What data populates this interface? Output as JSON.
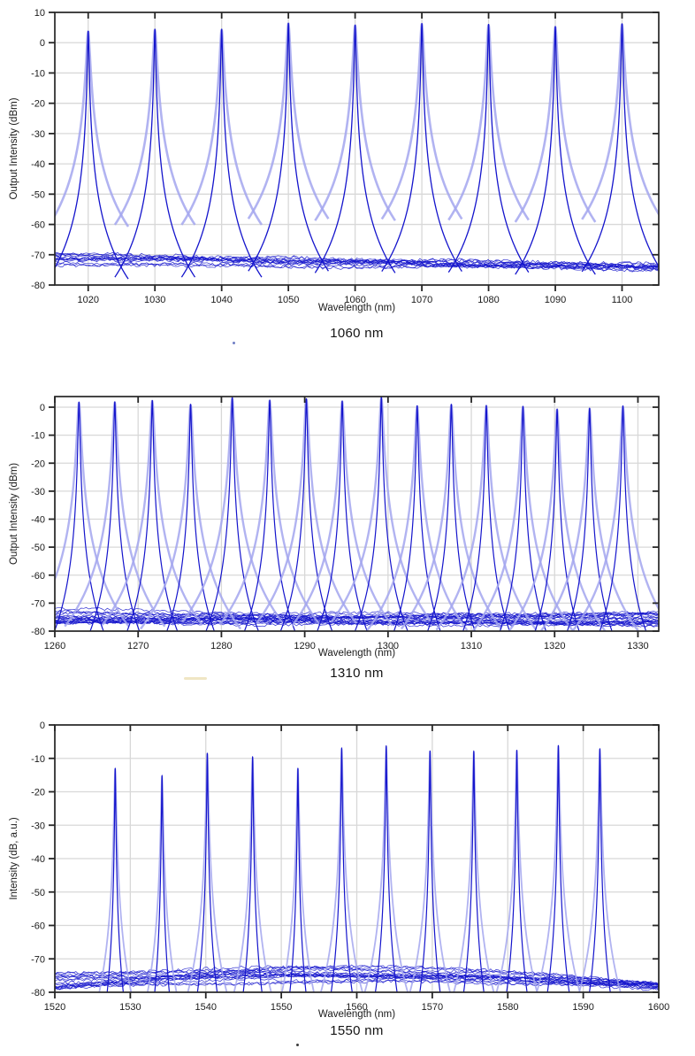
{
  "page": {
    "background": "#ffffff"
  },
  "colors": {
    "trace": "#1414cc",
    "halo": "#a3a6ef",
    "grid": "#d8d8d8",
    "axis": "#262626",
    "tick_text": "#1a1a1a",
    "caption_text": "#141414"
  },
  "chart_data": [
    {
      "type": "line",
      "caption": "1060 nm",
      "xlabel": "Wavelength (nm)",
      "ylabel": "Output Intensity (dBm)",
      "xlim": [
        1015,
        1105.5
      ],
      "ylim": [
        -80,
        10
      ],
      "xticks": [
        1020,
        1030,
        1040,
        1050,
        1060,
        1070,
        1080,
        1090,
        1100
      ],
      "yticks": [
        10,
        0,
        -10,
        -20,
        -30,
        -40,
        -50,
        -60,
        -70,
        -80
      ],
      "grid": true,
      "legend": null,
      "series_note": "Superimposed OSA sweeps of a tunable laser; one lasing peak per sweep over a ~-70 dBm ASE noise floor",
      "peaks": [
        {
          "wavelength_nm": 1020.0,
          "peak_db": 3.8
        },
        {
          "wavelength_nm": 1030.0,
          "peak_db": 4.4
        },
        {
          "wavelength_nm": 1040.0,
          "peak_db": 4.4
        },
        {
          "wavelength_nm": 1050.0,
          "peak_db": 6.4
        },
        {
          "wavelength_nm": 1060.0,
          "peak_db": 5.8
        },
        {
          "wavelength_nm": 1070.0,
          "peak_db": 6.3
        },
        {
          "wavelength_nm": 1080.0,
          "peak_db": 6.0
        },
        {
          "wavelength_nm": 1090.0,
          "peak_db": 5.3
        },
        {
          "wavelength_nm": 1100.0,
          "peak_db": 6.2
        }
      ],
      "noise_floor": {
        "start_range": [
          -73.5,
          -69.5
        ],
        "end_range": [
          -75.0,
          -73.2
        ],
        "mid_range": null,
        "jitter_db": 1.1,
        "extra_traces": 4
      },
      "peak_shape": {
        "gamma_nm": 0.1,
        "rolloff_db": 23,
        "halo_gamma_scale": 2.4,
        "halo_width": 2.6,
        "core_width": 1.3
      },
      "seed": 11
    },
    {
      "type": "line",
      "caption": "1310 nm",
      "xlabel": "Wavelength (nm)",
      "ylabel": "Output Intensity (dBm)",
      "xlim": [
        1260,
        1332.5
      ],
      "ylim": [
        -80,
        3.8
      ],
      "xticks": [
        1260,
        1270,
        1280,
        1290,
        1300,
        1310,
        1320,
        1330
      ],
      "yticks": [
        0,
        -10,
        -20,
        -30,
        -40,
        -50,
        -60,
        -70,
        -80
      ],
      "grid": true,
      "legend": null,
      "series_note": "Superimposed OSA sweeps; 16 lasing peaks spaced ~4.4 nm over a ~-74 dBm noise floor",
      "peaks": [
        {
          "wavelength_nm": 1262.9,
          "peak_db": 1.8
        },
        {
          "wavelength_nm": 1267.2,
          "peak_db": 1.9
        },
        {
          "wavelength_nm": 1271.7,
          "peak_db": 2.4
        },
        {
          "wavelength_nm": 1276.3,
          "peak_db": 1.0
        },
        {
          "wavelength_nm": 1281.3,
          "peak_db": 3.4
        },
        {
          "wavelength_nm": 1285.8,
          "peak_db": 2.5
        },
        {
          "wavelength_nm": 1290.2,
          "peak_db": 3.0
        },
        {
          "wavelength_nm": 1294.5,
          "peak_db": 2.2
        },
        {
          "wavelength_nm": 1299.2,
          "peak_db": 3.5
        },
        {
          "wavelength_nm": 1303.5,
          "peak_db": 0.5
        },
        {
          "wavelength_nm": 1307.6,
          "peak_db": 1.0
        },
        {
          "wavelength_nm": 1311.8,
          "peak_db": 0.6
        },
        {
          "wavelength_nm": 1316.2,
          "peak_db": 0.3
        },
        {
          "wavelength_nm": 1320.3,
          "peak_db": -0.7
        },
        {
          "wavelength_nm": 1324.2,
          "peak_db": -0.4
        },
        {
          "wavelength_nm": 1328.2,
          "peak_db": 0.4
        }
      ],
      "noise_floor": {
        "start_range": [
          -77.8,
          -71.5
        ],
        "end_range": [
          -78.2,
          -73.5
        ],
        "mid_range": null,
        "jitter_db": 1.1,
        "extra_traces": 4
      },
      "peak_shape": {
        "gamma_nm": 0.09,
        "rolloff_db": 27,
        "halo_gamma_scale": 2.2,
        "halo_width": 2.4,
        "core_width": 1.2
      },
      "seed": 29
    },
    {
      "type": "line",
      "caption": "1550 nm",
      "xlabel": "Wavelength (nm)",
      "ylabel": "Intensity (dB, a.u.)",
      "xlim": [
        1520,
        1600
      ],
      "ylim": [
        -80,
        0
      ],
      "xticks": [
        1520,
        1530,
        1540,
        1550,
        1560,
        1570,
        1580,
        1590,
        1600
      ],
      "yticks": [
        0,
        -10,
        -20,
        -30,
        -40,
        -50,
        -60,
        -70,
        -80
      ],
      "grid": true,
      "legend": null,
      "series_note": "Superimposed OSA sweeps; 12 lasing peaks spaced ~6 nm, noise floor humped near 1557 nm",
      "peaks": [
        {
          "wavelength_nm": 1528.0,
          "peak_db": -13.0
        },
        {
          "wavelength_nm": 1534.2,
          "peak_db": -15.2
        },
        {
          "wavelength_nm": 1540.2,
          "peak_db": -8.5
        },
        {
          "wavelength_nm": 1546.2,
          "peak_db": -9.6
        },
        {
          "wavelength_nm": 1552.2,
          "peak_db": -13.0
        },
        {
          "wavelength_nm": 1558.0,
          "peak_db": -7.0
        },
        {
          "wavelength_nm": 1563.9,
          "peak_db": -6.3
        },
        {
          "wavelength_nm": 1569.7,
          "peak_db": -7.8
        },
        {
          "wavelength_nm": 1575.5,
          "peak_db": -7.9
        },
        {
          "wavelength_nm": 1581.2,
          "peak_db": -7.6
        },
        {
          "wavelength_nm": 1586.7,
          "peak_db": -6.2
        },
        {
          "wavelength_nm": 1592.2,
          "peak_db": -7.2
        }
      ],
      "noise_floor": {
        "start_range": [
          -79.2,
          -74.0
        ],
        "end_range": [
          -79.2,
          -76.8
        ],
        "mid_range": [
          -78.0,
          -72.0
        ],
        "jitter_db": 0.9,
        "extra_traces": 5
      },
      "peak_shape": {
        "gamma_nm": 0.055,
        "rolloff_db": 26,
        "halo_gamma_scale": 2.0,
        "halo_width": 1.8,
        "core_width": 1.2
      },
      "seed": 47
    }
  ]
}
